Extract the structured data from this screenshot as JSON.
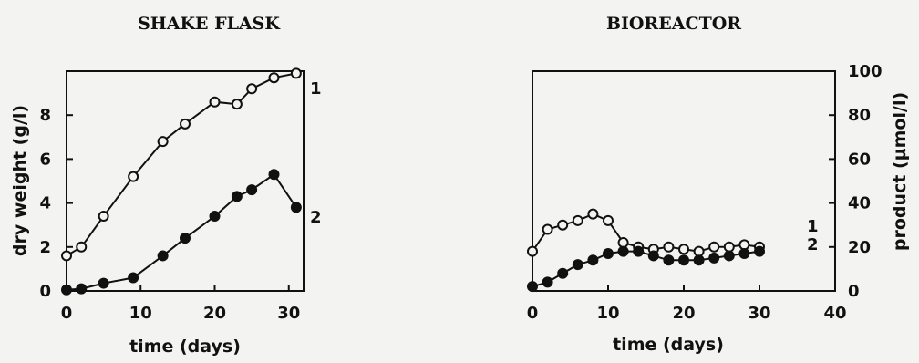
{
  "chart_data": [
    {
      "type": "line",
      "title": "SHAKE FLASK",
      "xlabel": "time (days)",
      "ylabel": "dry weight (g/l)",
      "xlim": [
        0,
        32
      ],
      "ylim": [
        0,
        10
      ],
      "x_ticks": [
        "0",
        "10",
        "20",
        "30"
      ],
      "y_ticks": [
        "0",
        "2",
        "4",
        "6",
        "8"
      ],
      "grid": false,
      "series": [
        {
          "name": "1",
          "marker": "open-circle",
          "x": [
            0,
            2,
            5,
            9,
            13,
            16,
            20,
            23,
            25,
            28,
            31
          ],
          "y": [
            1.6,
            2.0,
            3.4,
            5.2,
            6.8,
            7.6,
            8.6,
            8.5,
            9.2,
            9.7,
            9.9
          ]
        },
        {
          "name": "2",
          "marker": "filled-circle",
          "x": [
            0,
            2,
            5,
            9,
            13,
            16,
            20,
            23,
            25,
            28,
            31
          ],
          "y": [
            0.05,
            0.1,
            0.35,
            0.6,
            1.6,
            2.4,
            3.4,
            4.3,
            4.6,
            5.3,
            3.8
          ]
        }
      ]
    },
    {
      "type": "line",
      "title": "BIOREACTOR",
      "xlabel": "time (days)",
      "ylabel": "product (µmol/l)",
      "xlim": [
        0,
        40
      ],
      "ylim": [
        0,
        100
      ],
      "x_ticks": [
        "0",
        "10",
        "20",
        "30",
        "40"
      ],
      "y_ticks": [
        "0",
        "20",
        "40",
        "60",
        "80",
        "100"
      ],
      "y_axis_side": "right",
      "grid": false,
      "series": [
        {
          "name": "1",
          "marker": "open-circle",
          "x": [
            0,
            2,
            4,
            6,
            8,
            10,
            12,
            14,
            16,
            18,
            20,
            22,
            24,
            26,
            28,
            30
          ],
          "y": [
            18,
            28,
            30,
            32,
            35,
            32,
            22,
            20,
            19,
            20,
            19,
            18,
            20,
            20,
            21,
            20
          ]
        },
        {
          "name": "2",
          "marker": "filled-circle",
          "x": [
            0,
            2,
            4,
            6,
            8,
            10,
            12,
            14,
            16,
            18,
            20,
            22,
            24,
            26,
            28,
            30
          ],
          "y": [
            2,
            4,
            8,
            12,
            14,
            17,
            18,
            18,
            16,
            14,
            14,
            14,
            15,
            16,
            17,
            18
          ]
        }
      ]
    }
  ]
}
